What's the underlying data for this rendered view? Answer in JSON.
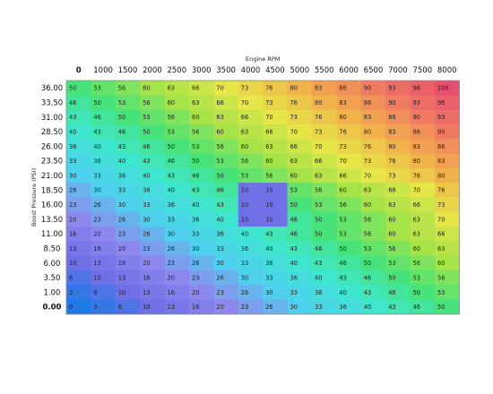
{
  "chart_data": {
    "type": "heatmap",
    "xlabel": "Engine RPM",
    "ylabel": "Boost Pressure (PSI)",
    "x": [
      "0",
      "1000",
      "1500",
      "2000",
      "2500",
      "3000",
      "3500",
      "4000",
      "4500",
      "5000",
      "5500",
      "6000",
      "6500",
      "7000",
      "7500",
      "8000"
    ],
    "y": [
      "36.00",
      "33.50",
      "31.00",
      "28.50",
      "26.00",
      "23.50",
      "21.00",
      "18.50",
      "16.00",
      "13.50",
      "11.00",
      "8.50",
      "6.00",
      "3.50",
      "1.00",
      "0.00"
    ],
    "values": [
      [
        50,
        53,
        56,
        60,
        63,
        66,
        70,
        73,
        76,
        80,
        83,
        86,
        90,
        93,
        96,
        100
      ],
      [
        46,
        50,
        53,
        56,
        60,
        63,
        66,
        70,
        73,
        76,
        80,
        83,
        86,
        90,
        93,
        96
      ],
      [
        43,
        46,
        50,
        53,
        56,
        60,
        63,
        66,
        70,
        73,
        76,
        80,
        83,
        86,
        90,
        93
      ],
      [
        40,
        43,
        46,
        50,
        53,
        56,
        60,
        63,
        66,
        70,
        73,
        76,
        80,
        83,
        86,
        90
      ],
      [
        36,
        40,
        43,
        46,
        50,
        53,
        56,
        60,
        63,
        66,
        70,
        73,
        76,
        80,
        83,
        86
      ],
      [
        33,
        36,
        40,
        43,
        46,
        50,
        53,
        56,
        60,
        63,
        66,
        70,
        73,
        76,
        80,
        83
      ],
      [
        30,
        33,
        36,
        40,
        43,
        46,
        50,
        53,
        56,
        60,
        63,
        66,
        70,
        73,
        76,
        80
      ],
      [
        26,
        30,
        33,
        36,
        40,
        43,
        46,
        10,
        10,
        53,
        56,
        60,
        63,
        66,
        70,
        76
      ],
      [
        23,
        26,
        30,
        33,
        36,
        40,
        43,
        10,
        10,
        50,
        53,
        56,
        60,
        63,
        66,
        73
      ],
      [
        20,
        23,
        26,
        30,
        33,
        36,
        40,
        10,
        10,
        46,
        50,
        53,
        56,
        60,
        63,
        70
      ],
      [
        16,
        20,
        23,
        26,
        30,
        33,
        36,
        40,
        43,
        46,
        50,
        53,
        56,
        60,
        63,
        66
      ],
      [
        13,
        16,
        20,
        23,
        26,
        30,
        33,
        36,
        40,
        43,
        46,
        50,
        53,
        56,
        60,
        63
      ],
      [
        10,
        13,
        16,
        20,
        23,
        26,
        30,
        33,
        36,
        40,
        43,
        46,
        50,
        53,
        56,
        60
      ],
      [
        6,
        10,
        13,
        16,
        20,
        23,
        26,
        30,
        33,
        36,
        40,
        43,
        46,
        50,
        53,
        56
      ],
      [
        3,
        6,
        10,
        13,
        16,
        20,
        23,
        26,
        30,
        33,
        36,
        40,
        43,
        46,
        50,
        53
      ],
      [
        0,
        3,
        6,
        10,
        13,
        16,
        20,
        23,
        26,
        30,
        33,
        36,
        40,
        43,
        46,
        50
      ]
    ],
    "colormap_stops": [
      "#1e7be6",
      "#6f6fe8",
      "#8e88ee",
      "#4fd0ee",
      "#3ee6cf",
      "#47e37a",
      "#a6e349",
      "#e6e649",
      "#f2b24a",
      "#f07a62",
      "#e84e6e"
    ],
    "vmin": 0,
    "vmax": 100
  }
}
